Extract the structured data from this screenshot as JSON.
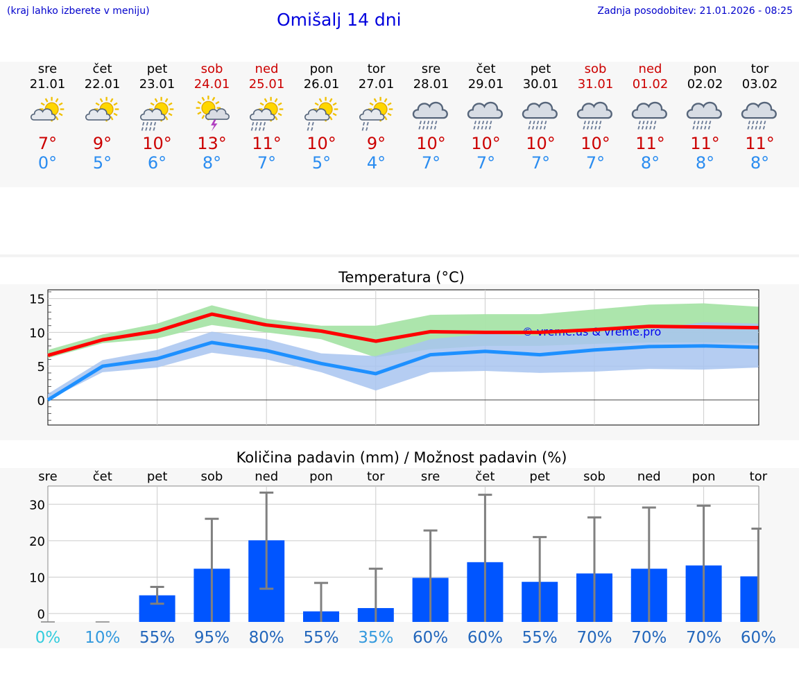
{
  "header": {
    "hint": "(kraj lahko izberete v meniju)",
    "title": "Omišalj 14 dni",
    "updated": "Zadnja posodobitev: 21.01.2026 - 08:25"
  },
  "days": [
    {
      "name": "sre",
      "date": "21.01",
      "weekend": false,
      "icon": "sun-cloud-icon",
      "tmax": "7°",
      "tmin": "0°"
    },
    {
      "name": "čet",
      "date": "22.01",
      "weekend": false,
      "icon": "sun-cloud-icon",
      "tmax": "9°",
      "tmin": "5°"
    },
    {
      "name": "pet",
      "date": "23.01",
      "weekend": false,
      "icon": "sun-cloud-rain-icon",
      "tmax": "10°",
      "tmin": "6°"
    },
    {
      "name": "sob",
      "date": "24.01",
      "weekend": true,
      "icon": "sun-storm-icon",
      "tmax": "13°",
      "tmin": "8°"
    },
    {
      "name": "ned",
      "date": "25.01",
      "weekend": true,
      "icon": "sun-cloud-rain-icon",
      "tmax": "11°",
      "tmin": "7°"
    },
    {
      "name": "pon",
      "date": "26.01",
      "weekend": false,
      "icon": "sun-cloud-drizzle-icon",
      "tmax": "10°",
      "tmin": "5°"
    },
    {
      "name": "tor",
      "date": "27.01",
      "weekend": false,
      "icon": "sun-cloud-drizzle-icon",
      "tmax": "9°",
      "tmin": "4°"
    },
    {
      "name": "sre",
      "date": "28.01",
      "weekend": false,
      "icon": "cloud-rain-icon",
      "tmax": "10°",
      "tmin": "7°"
    },
    {
      "name": "čet",
      "date": "29.01",
      "weekend": false,
      "icon": "cloud-rain-icon",
      "tmax": "10°",
      "tmin": "7°"
    },
    {
      "name": "pet",
      "date": "30.01",
      "weekend": false,
      "icon": "cloud-rain-icon",
      "tmax": "10°",
      "tmin": "7°"
    },
    {
      "name": "sob",
      "date": "31.01",
      "weekend": true,
      "icon": "cloud-rain-icon",
      "tmax": "10°",
      "tmin": "7°"
    },
    {
      "name": "ned",
      "date": "01.02",
      "weekend": true,
      "icon": "cloud-rain-icon",
      "tmax": "11°",
      "tmin": "8°"
    },
    {
      "name": "pon",
      "date": "02.02",
      "weekend": false,
      "icon": "cloud-rain-icon",
      "tmax": "11°",
      "tmin": "8°"
    },
    {
      "name": "tor",
      "date": "03.02",
      "weekend": false,
      "icon": "cloud-rain-icon",
      "tmax": "11°",
      "tmin": "8°"
    }
  ],
  "colors": {
    "tmax": "#ff0000",
    "tmin": "#1e90ff",
    "band_max": "#a8e4a8",
    "band_min": "#a8c4f0",
    "band_overlap": "#78bca8",
    "bar": "#0055ff",
    "whisker": "#808080",
    "pct_low": "#33ccdd",
    "pct_mid": "#3399dd",
    "pct_high": "#2266bb"
  },
  "chart_data": [
    {
      "type": "line",
      "title": "Temperatura (°C)",
      "watermark": "© vreme.us & vreme.pro",
      "ylim": [
        -3.7,
        16.3
      ],
      "yticks": [
        0,
        5,
        10,
        15
      ],
      "series": [
        {
          "name": "max",
          "values": [
            6.6,
            8.9,
            10.2,
            12.7,
            11.1,
            10.2,
            8.7,
            10.1,
            10.0,
            10.0,
            10.4,
            10.9,
            10.8,
            10.7
          ],
          "band": [
            [
              6.2,
              7.4
            ],
            [
              8.4,
              9.7
            ],
            [
              9.1,
              11.3
            ],
            [
              11.1,
              14.0
            ],
            [
              10.0,
              12.0
            ],
            [
              9.0,
              11.0
            ],
            [
              6.3,
              11.0
            ],
            [
              7.5,
              12.6
            ],
            [
              8.0,
              12.7
            ],
            [
              8.0,
              12.7
            ],
            [
              8.3,
              13.4
            ],
            [
              8.5,
              14.1
            ],
            [
              8.5,
              14.3
            ],
            [
              8.4,
              13.8
            ]
          ]
        },
        {
          "name": "min",
          "values": [
            0,
            5.0,
            6.1,
            8.5,
            7.3,
            5.4,
            3.9,
            6.7,
            7.2,
            6.7,
            7.4,
            7.9,
            8.0,
            7.8
          ],
          "band": [
            [
              0,
              0.9
            ],
            [
              4.1,
              5.9
            ],
            [
              4.8,
              7.4
            ],
            [
              7.0,
              10.1
            ],
            [
              6.0,
              9.0
            ],
            [
              4.1,
              6.9
            ],
            [
              1.4,
              6.5
            ],
            [
              4.1,
              9.0
            ],
            [
              4.3,
              9.8
            ],
            [
              4.0,
              9.5
            ],
            [
              4.2,
              10.0
            ],
            [
              4.6,
              10.5
            ],
            [
              4.5,
              11.5
            ],
            [
              4.8,
              11.3
            ]
          ]
        }
      ]
    },
    {
      "type": "bar",
      "title": "Količina padavin (mm) / Možnost padavin (%)",
      "categories": [
        "sre",
        "čet",
        "pet",
        "sob",
        "ned",
        "pon",
        "tor",
        "sre",
        "čet",
        "pet",
        "sob",
        "ned",
        "pon",
        "tor"
      ],
      "values": [
        0,
        0,
        5.0,
        12.3,
        20.1,
        0.6,
        1.5,
        9.8,
        14.1,
        8.7,
        11.0,
        12.3,
        13.2,
        10.2
      ],
      "error_low": [
        0,
        0,
        2.7,
        0,
        6.8,
        0,
        0,
        0,
        0,
        0,
        0,
        0,
        0,
        0
      ],
      "error_high": [
        0,
        0,
        7.3,
        26.0,
        33.2,
        8.4,
        12.3,
        22.8,
        32.6,
        21.0,
        26.4,
        29.1,
        29.6,
        23.3
      ],
      "probability": [
        "0%",
        "10%",
        "55%",
        "95%",
        "80%",
        "55%",
        "35%",
        "60%",
        "60%",
        "55%",
        "70%",
        "70%",
        "70%",
        "60%"
      ],
      "ylim": [
        -2.3,
        35
      ],
      "yticks": [
        0,
        10,
        20,
        30
      ]
    }
  ]
}
